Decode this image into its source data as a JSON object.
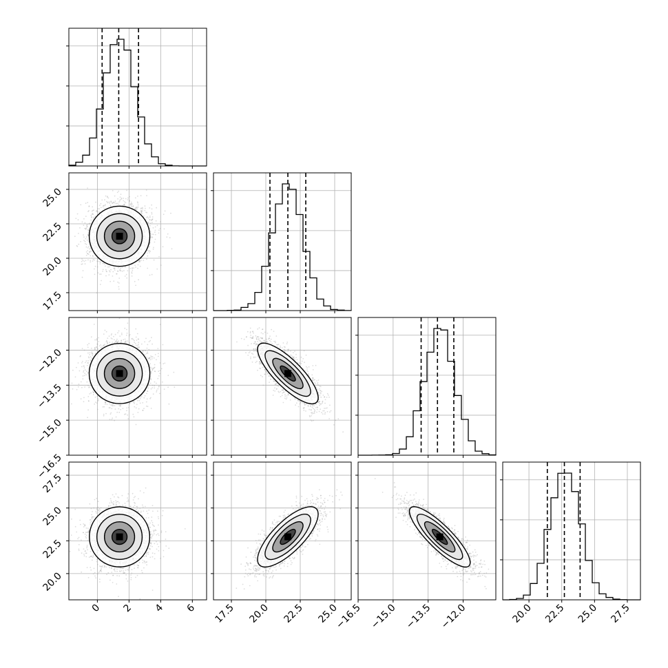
{
  "chart_data": {
    "type": "corner",
    "parameters": [
      {
        "range": [
          -1.8,
          6.9
        ],
        "ticks": [
          0,
          2,
          4,
          6
        ],
        "tick_labels": [
          "0",
          "2",
          "4",
          "6"
        ],
        "mean": 1.4,
        "sd": 0.95,
        "quantiles": [
          0.3,
          1.35,
          2.6
        ],
        "hist_axis": "none"
      },
      {
        "range": [
          16.2,
          26.2
        ],
        "ticks": [
          17.5,
          20.0,
          22.5,
          25.0
        ],
        "tick_labels": [
          "17.5",
          "20.0",
          "22.5",
          "25.0"
        ],
        "mean": 21.6,
        "sd": 1.1,
        "quantiles": [
          20.3,
          21.6,
          22.9
        ],
        "hist_axis": "none"
      },
      {
        "range": [
          -16.5,
          -10.6
        ],
        "ticks": [
          -16.5,
          -15.0,
          -13.5,
          -12.0
        ],
        "tick_labels": [
          "-16.5",
          "-15.0",
          "-13.5",
          "-12.0"
        ],
        "mean": -13.0,
        "sd": 0.65,
        "quantiles": [
          -13.8,
          -13.1,
          -12.4
        ],
        "hist_axis": "none"
      },
      {
        "range": [
          18.0,
          28.5
        ],
        "ticks": [
          20.0,
          22.5,
          25.0,
          27.5
        ],
        "tick_labels": [
          "20.0",
          "22.5",
          "25.0",
          "27.5"
        ],
        "mean": 22.8,
        "sd": 1.15,
        "quantiles": [
          21.4,
          22.7,
          23.9
        ],
        "hist_axis": "none"
      }
    ],
    "correlations": {
      "1-0": 0.0,
      "2-0": 0.0,
      "2-1": -0.8,
      "3-0": 0.0,
      "3-1": 0.75,
      "3-2": -0.85
    },
    "histogram_bins": 20,
    "contour_levels": [
      "0.5 sigma",
      "1 sigma",
      "1.5 sigma",
      "2 sigma"
    ],
    "samples_per_panel": 3000,
    "grid": true,
    "colors": {
      "line": "#000000",
      "points": "#9a9a9a",
      "grid": "#b0b0b0"
    }
  }
}
